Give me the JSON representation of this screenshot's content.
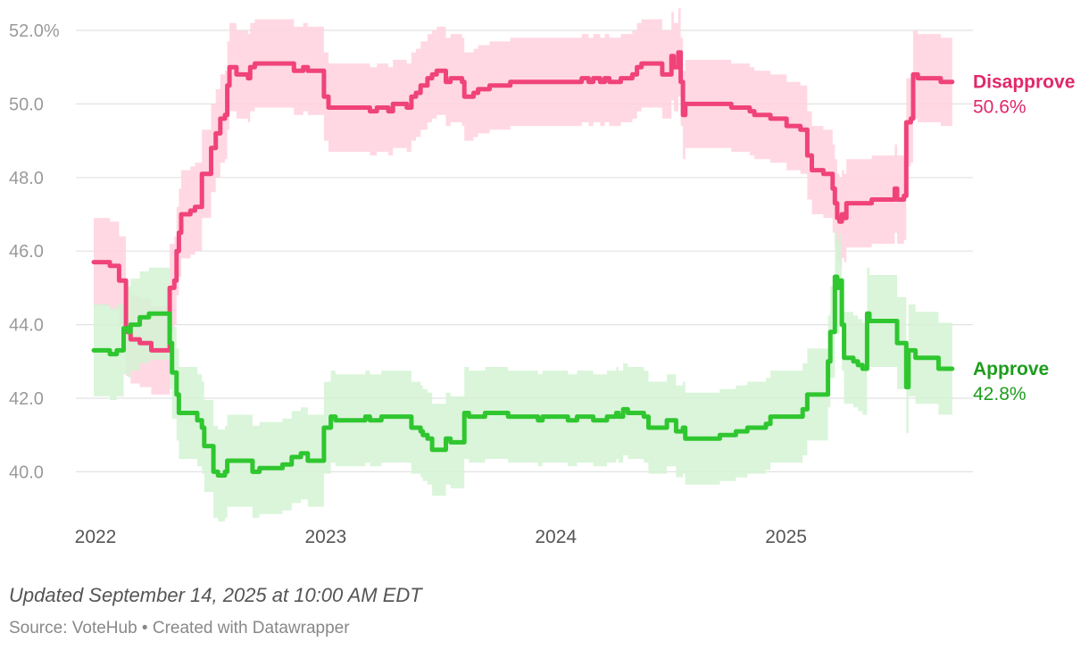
{
  "chart_data": {
    "type": "line",
    "title": "",
    "ylim": [
      39,
      52
    ],
    "y_ticks": [
      {
        "value": 40,
        "label": "40.0"
      },
      {
        "value": 42,
        "label": "42.0"
      },
      {
        "value": 44,
        "label": "44.0"
      },
      {
        "value": 46,
        "label": "46.0"
      },
      {
        "value": 48,
        "label": "48.0"
      },
      {
        "value": 50,
        "label": "50.0"
      },
      {
        "value": 52,
        "label": "52.0%"
      }
    ],
    "x_range": [
      2022.0,
      2025.75
    ],
    "x_ticks": [
      {
        "value": 2022.0,
        "label": "2022"
      },
      {
        "value": 2023.0,
        "label": "2023"
      },
      {
        "value": 2024.0,
        "label": "2024"
      },
      {
        "value": 2025.0,
        "label": "2025"
      }
    ],
    "series": [
      {
        "name": "Disapprove",
        "end_label": "50.6%",
        "color": "#f0437a",
        "label_color": "#e0286a",
        "band_color": "#ffd1de",
        "band_width": 1.2,
        "points": [
          [
            2022.0,
            45.7
          ],
          [
            2022.05,
            45.7
          ],
          [
            2022.07,
            45.6
          ],
          [
            2022.1,
            45.6
          ],
          [
            2022.11,
            45.2
          ],
          [
            2022.13,
            45.2
          ],
          [
            2022.14,
            43.8
          ],
          [
            2022.16,
            43.6
          ],
          [
            2022.2,
            43.5
          ],
          [
            2022.25,
            43.3
          ],
          [
            2022.32,
            43.3
          ],
          [
            2022.33,
            45.0
          ],
          [
            2022.35,
            45.2
          ],
          [
            2022.36,
            46.0
          ],
          [
            2022.37,
            46.5
          ],
          [
            2022.38,
            47.0
          ],
          [
            2022.42,
            47.1
          ],
          [
            2022.44,
            47.2
          ],
          [
            2022.46,
            47.2
          ],
          [
            2022.47,
            48.1
          ],
          [
            2022.5,
            48.1
          ],
          [
            2022.51,
            48.8
          ],
          [
            2022.53,
            49.2
          ],
          [
            2022.55,
            49.6
          ],
          [
            2022.57,
            49.7
          ],
          [
            2022.58,
            50.5
          ],
          [
            2022.59,
            51.0
          ],
          [
            2022.62,
            50.8
          ],
          [
            2022.65,
            50.8
          ],
          [
            2022.67,
            50.7
          ],
          [
            2022.68,
            51.0
          ],
          [
            2022.7,
            51.1
          ],
          [
            2022.85,
            51.1
          ],
          [
            2022.87,
            50.9
          ],
          [
            2022.9,
            50.9
          ],
          [
            2022.91,
            51.0
          ],
          [
            2022.93,
            50.9
          ],
          [
            2022.98,
            50.9
          ],
          [
            2023.0,
            50.2
          ],
          [
            2023.02,
            49.9
          ],
          [
            2023.17,
            49.9
          ],
          [
            2023.2,
            49.8
          ],
          [
            2023.23,
            49.9
          ],
          [
            2023.27,
            49.9
          ],
          [
            2023.28,
            49.8
          ],
          [
            2023.3,
            50.0
          ],
          [
            2023.35,
            50.0
          ],
          [
            2023.36,
            49.9
          ],
          [
            2023.38,
            50.2
          ],
          [
            2023.4,
            50.3
          ],
          [
            2023.42,
            50.5
          ],
          [
            2023.45,
            50.7
          ],
          [
            2023.47,
            50.8
          ],
          [
            2023.49,
            50.9
          ],
          [
            2023.52,
            50.9
          ],
          [
            2023.53,
            50.6
          ],
          [
            2023.55,
            50.7
          ],
          [
            2023.6,
            50.6
          ],
          [
            2023.61,
            50.2
          ],
          [
            2023.65,
            50.3
          ],
          [
            2023.67,
            50.4
          ],
          [
            2023.7,
            50.4
          ],
          [
            2023.72,
            50.5
          ],
          [
            2023.75,
            50.5
          ],
          [
            2023.8,
            50.5
          ],
          [
            2023.81,
            50.6
          ],
          [
            2024.1,
            50.6
          ],
          [
            2024.12,
            50.7
          ],
          [
            2024.15,
            50.6
          ],
          [
            2024.17,
            50.7
          ],
          [
            2024.2,
            50.6
          ],
          [
            2024.22,
            50.7
          ],
          [
            2024.24,
            50.6
          ],
          [
            2024.28,
            50.6
          ],
          [
            2024.29,
            50.7
          ],
          [
            2024.34,
            50.8
          ],
          [
            2024.36,
            51.0
          ],
          [
            2024.38,
            51.1
          ],
          [
            2024.46,
            51.1
          ],
          [
            2024.47,
            50.8
          ],
          [
            2024.5,
            50.8
          ],
          [
            2024.51,
            51.3
          ],
          [
            2024.52,
            51.0
          ],
          [
            2024.54,
            51.4
          ],
          [
            2024.55,
            50.6
          ],
          [
            2024.56,
            49.7
          ],
          [
            2024.57,
            50.0
          ],
          [
            2024.75,
            50.0
          ],
          [
            2024.77,
            49.9
          ],
          [
            2024.83,
            49.9
          ],
          [
            2024.85,
            49.8
          ],
          [
            2024.87,
            49.7
          ],
          [
            2024.93,
            49.7
          ],
          [
            2024.94,
            49.6
          ],
          [
            2025.0,
            49.6
          ],
          [
            2025.01,
            49.4
          ],
          [
            2025.06,
            49.4
          ],
          [
            2025.07,
            49.3
          ],
          [
            2025.09,
            49.3
          ],
          [
            2025.1,
            48.6
          ],
          [
            2025.12,
            48.2
          ],
          [
            2025.15,
            48.2
          ],
          [
            2025.17,
            48.1
          ],
          [
            2025.2,
            48.1
          ],
          [
            2025.21,
            47.7
          ],
          [
            2025.22,
            47.3
          ],
          [
            2025.23,
            46.9
          ],
          [
            2025.24,
            46.8
          ],
          [
            2025.25,
            47.0
          ],
          [
            2025.26,
            46.9
          ],
          [
            2025.27,
            47.3
          ],
          [
            2025.37,
            47.3
          ],
          [
            2025.38,
            47.4
          ],
          [
            2025.47,
            47.4
          ],
          [
            2025.48,
            47.7
          ],
          [
            2025.49,
            47.4
          ],
          [
            2025.52,
            47.5
          ],
          [
            2025.53,
            49.5
          ],
          [
            2025.55,
            49.6
          ],
          [
            2025.56,
            50.8
          ],
          [
            2025.58,
            50.7
          ],
          [
            2025.67,
            50.7
          ],
          [
            2025.68,
            50.6
          ],
          [
            2025.73,
            50.6
          ]
        ]
      },
      {
        "name": "Approve",
        "end_label": "42.8%",
        "color": "#2fc62f",
        "label_color": "#1d9d1d",
        "band_color": "#d3f3d3",
        "band_width": 1.25,
        "points": [
          [
            2022.0,
            43.3
          ],
          [
            2022.06,
            43.3
          ],
          [
            2022.07,
            43.2
          ],
          [
            2022.09,
            43.2
          ],
          [
            2022.1,
            43.3
          ],
          [
            2022.12,
            43.3
          ],
          [
            2022.13,
            43.9
          ],
          [
            2022.15,
            43.8
          ],
          [
            2022.16,
            44.0
          ],
          [
            2022.19,
            44.0
          ],
          [
            2022.2,
            44.2
          ],
          [
            2022.23,
            44.2
          ],
          [
            2022.24,
            44.3
          ],
          [
            2022.32,
            44.3
          ],
          [
            2022.33,
            43.5
          ],
          [
            2022.34,
            42.7
          ],
          [
            2022.36,
            42.1
          ],
          [
            2022.37,
            41.6
          ],
          [
            2022.44,
            41.6
          ],
          [
            2022.45,
            41.4
          ],
          [
            2022.47,
            41.2
          ],
          [
            2022.48,
            40.7
          ],
          [
            2022.51,
            40.7
          ],
          [
            2022.52,
            40.0
          ],
          [
            2022.54,
            39.9
          ],
          [
            2022.57,
            40.0
          ],
          [
            2022.58,
            40.3
          ],
          [
            2022.67,
            40.3
          ],
          [
            2022.69,
            40.0
          ],
          [
            2022.72,
            40.1
          ],
          [
            2022.8,
            40.1
          ],
          [
            2022.82,
            40.2
          ],
          [
            2022.86,
            40.4
          ],
          [
            2022.88,
            40.4
          ],
          [
            2022.9,
            40.5
          ],
          [
            2022.93,
            40.3
          ],
          [
            2022.99,
            40.3
          ],
          [
            2023.0,
            41.2
          ],
          [
            2023.03,
            41.5
          ],
          [
            2023.05,
            41.4
          ],
          [
            2023.17,
            41.4
          ],
          [
            2023.18,
            41.5
          ],
          [
            2023.2,
            41.4
          ],
          [
            2023.23,
            41.4
          ],
          [
            2023.25,
            41.5
          ],
          [
            2023.37,
            41.5
          ],
          [
            2023.38,
            41.2
          ],
          [
            2023.42,
            41.1
          ],
          [
            2023.43,
            41.0
          ],
          [
            2023.45,
            40.9
          ],
          [
            2023.47,
            40.6
          ],
          [
            2023.52,
            40.6
          ],
          [
            2023.53,
            40.9
          ],
          [
            2023.55,
            40.8
          ],
          [
            2023.6,
            40.8
          ],
          [
            2023.61,
            41.6
          ],
          [
            2023.63,
            41.5
          ],
          [
            2023.7,
            41.6
          ],
          [
            2023.8,
            41.5
          ],
          [
            2023.9,
            41.5
          ],
          [
            2023.93,
            41.4
          ],
          [
            2023.95,
            41.5
          ],
          [
            2024.05,
            41.5
          ],
          [
            2024.06,
            41.4
          ],
          [
            2024.1,
            41.5
          ],
          [
            2024.15,
            41.5
          ],
          [
            2024.17,
            41.4
          ],
          [
            2024.22,
            41.4
          ],
          [
            2024.23,
            41.5
          ],
          [
            2024.27,
            41.6
          ],
          [
            2024.28,
            41.5
          ],
          [
            2024.3,
            41.7
          ],
          [
            2024.32,
            41.6
          ],
          [
            2024.37,
            41.6
          ],
          [
            2024.39,
            41.5
          ],
          [
            2024.41,
            41.2
          ],
          [
            2024.48,
            41.2
          ],
          [
            2024.49,
            41.4
          ],
          [
            2024.52,
            41.4
          ],
          [
            2024.53,
            41.1
          ],
          [
            2024.55,
            41.1
          ],
          [
            2024.56,
            41.2
          ],
          [
            2024.57,
            40.9
          ],
          [
            2024.7,
            40.9
          ],
          [
            2024.72,
            41.0
          ],
          [
            2024.77,
            41.0
          ],
          [
            2024.79,
            41.1
          ],
          [
            2024.84,
            41.2
          ],
          [
            2024.92,
            41.3
          ],
          [
            2024.94,
            41.5
          ],
          [
            2025.07,
            41.5
          ],
          [
            2025.08,
            41.7
          ],
          [
            2025.1,
            42.1
          ],
          [
            2025.18,
            42.1
          ],
          [
            2025.19,
            43.0
          ],
          [
            2025.2,
            43.8
          ],
          [
            2025.22,
            45.3
          ],
          [
            2025.23,
            45.0
          ],
          [
            2025.24,
            45.2
          ],
          [
            2025.25,
            44.0
          ],
          [
            2025.26,
            43.1
          ],
          [
            2025.3,
            43.0
          ],
          [
            2025.32,
            42.9
          ],
          [
            2025.34,
            42.8
          ],
          [
            2025.35,
            42.8
          ],
          [
            2025.36,
            44.3
          ],
          [
            2025.37,
            44.1
          ],
          [
            2025.48,
            44.1
          ],
          [
            2025.49,
            43.5
          ],
          [
            2025.52,
            43.5
          ],
          [
            2025.53,
            42.3
          ],
          [
            2025.54,
            43.3
          ],
          [
            2025.55,
            43.3
          ],
          [
            2025.57,
            43.1
          ],
          [
            2025.66,
            43.1
          ],
          [
            2025.67,
            42.8
          ],
          [
            2025.73,
            42.8
          ]
        ]
      }
    ]
  },
  "footer": {
    "updated": "Updated September 14, 2025 at 10:00 AM EDT",
    "source": "Source: VoteHub • Created with Datawrapper"
  }
}
